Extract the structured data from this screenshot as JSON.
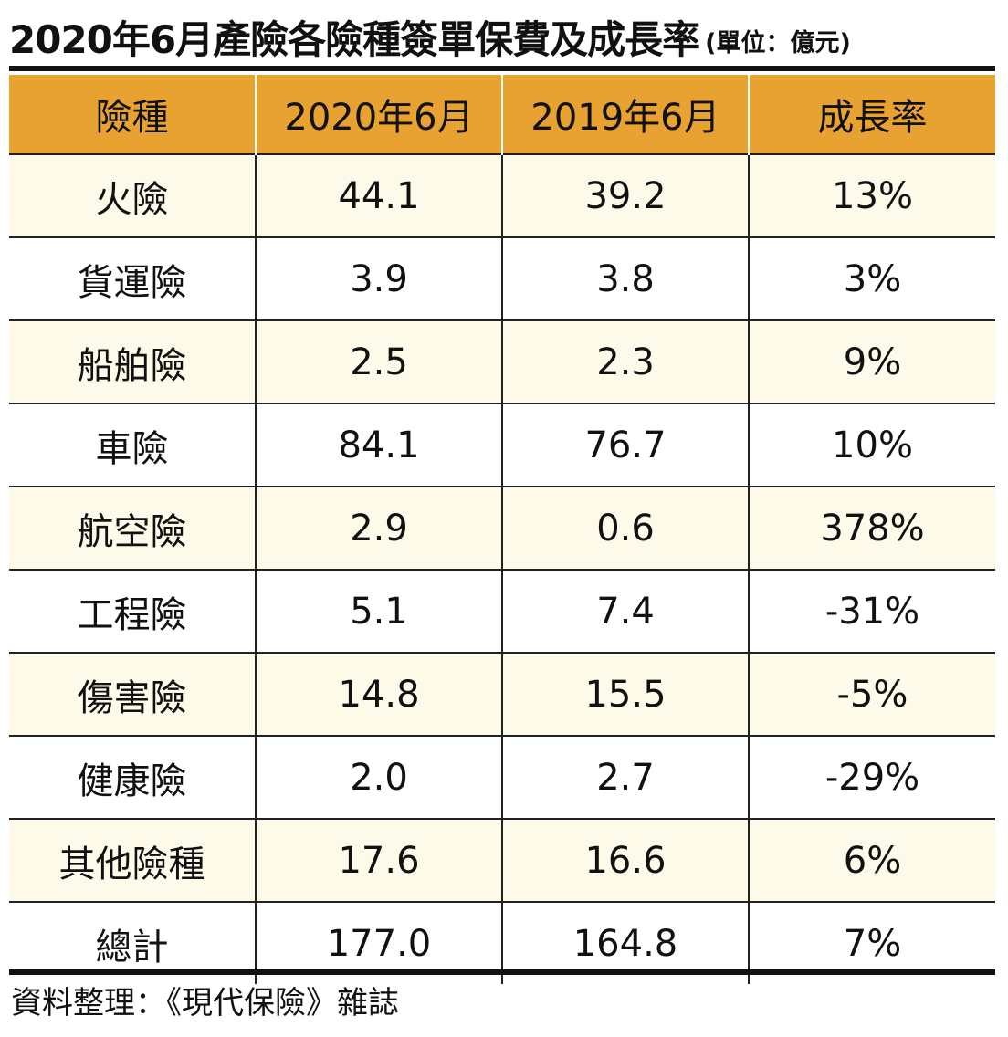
{
  "title": "2020年6月產險各險種簽單保費及成長率",
  "unit": "(單位：億元)",
  "source": "資料整理：《現代保險》雜誌",
  "colors": {
    "header_bg": "#e8a232",
    "odd_row_bg": "#fdfaea",
    "even_row_bg": "#ffffff",
    "rule": "#111111"
  },
  "chart_data": {
    "type": "table",
    "title": "2020年6月產險各險種簽單保費及成長率",
    "columns": [
      "險種",
      "2020年6月",
      "2019年6月",
      "成長率"
    ],
    "rows": [
      [
        "火險",
        "44.1",
        "39.2",
        "13%"
      ],
      [
        "貨運險",
        "3.9",
        "3.8",
        "3%"
      ],
      [
        "船舶險",
        "2.5",
        "2.3",
        "9%"
      ],
      [
        "車險",
        "84.1",
        "76.7",
        "10%"
      ],
      [
        "航空險",
        "2.9",
        "0.6",
        "378%"
      ],
      [
        "工程險",
        "5.1",
        "7.4",
        "-31%"
      ],
      [
        "傷害險",
        "14.8",
        "15.5",
        "-5%"
      ],
      [
        "健康險",
        "2.0",
        "2.7",
        "-29%"
      ],
      [
        "其他險種",
        "17.6",
        "16.6",
        "6%"
      ],
      [
        "總計",
        "177.0",
        "164.8",
        "7%"
      ]
    ]
  }
}
